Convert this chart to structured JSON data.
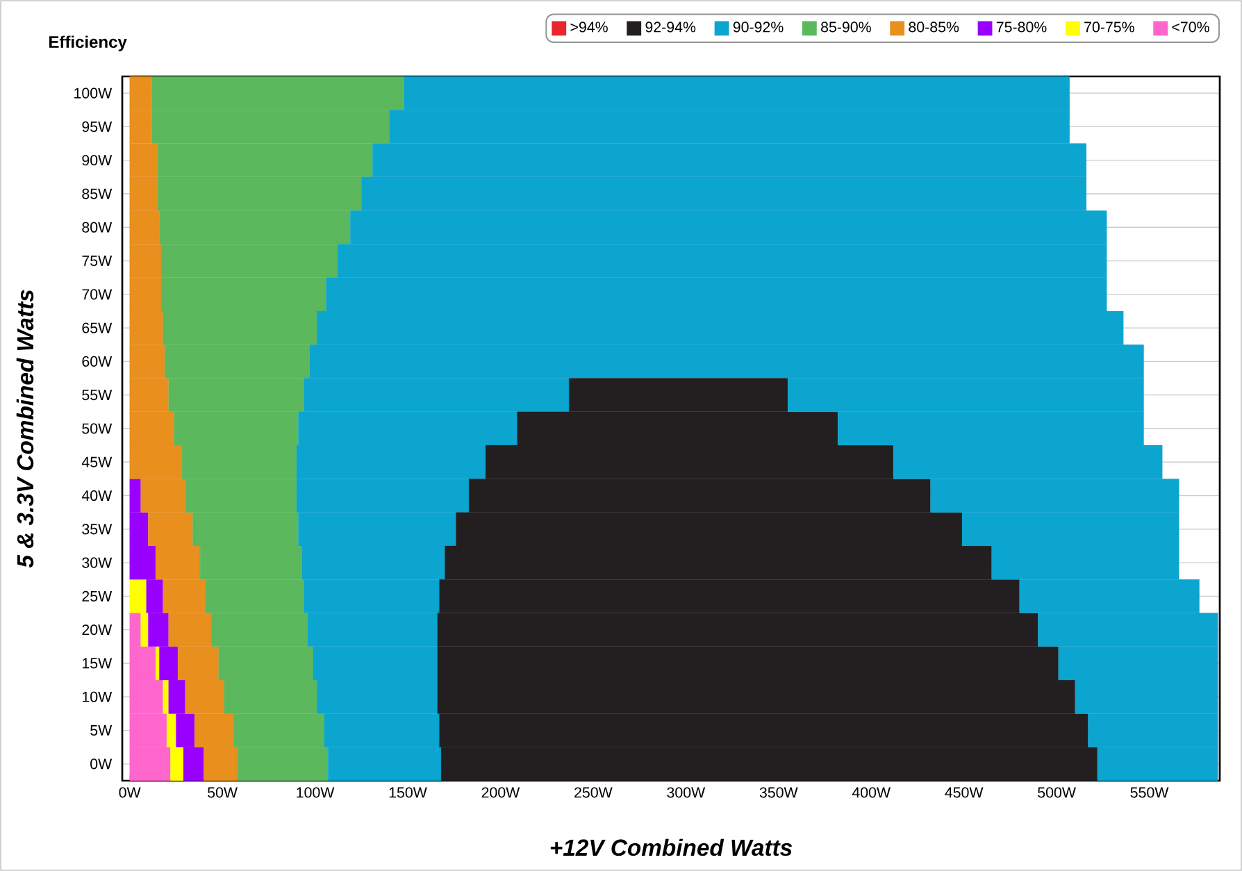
{
  "chart_data": {
    "type": "bar",
    "orientation": "horizontal",
    "stacked": true,
    "title": "Efficiency",
    "xlabel": "+12V Combined Watts",
    "ylabel": "5 & 3.3V Combined Watts",
    "categories": [
      "100W",
      "95W",
      "90W",
      "85W",
      "80W",
      "75W",
      "70W",
      "65W",
      "60W",
      "55W",
      "50W",
      "45W",
      "40W",
      "35W",
      "30W",
      "25W",
      "20W",
      "15W",
      "10W",
      "5W",
      "0W"
    ],
    "xlim": [
      -4,
      588
    ],
    "xticks": [
      {
        "value": 0,
        "label": "0W"
      },
      {
        "value": 50,
        "label": "50W"
      },
      {
        "value": 100,
        "label": "100W"
      },
      {
        "value": 150,
        "label": "150W"
      },
      {
        "value": 200,
        "label": "200W"
      },
      {
        "value": 250,
        "label": "250W"
      },
      {
        "value": 300,
        "label": "300W"
      },
      {
        "value": 350,
        "label": "350W"
      },
      {
        "value": 400,
        "label": "400W"
      },
      {
        "value": 450,
        "label": "450W"
      },
      {
        "value": 500,
        "label": "500W"
      },
      {
        "value": 550,
        "label": "550W"
      }
    ],
    "grid": "y",
    "legend": "top right",
    "series": [
      {
        "name": "<70%",
        "color": "#ff66cc",
        "values": [
          null,
          null,
          null,
          null,
          null,
          null,
          null,
          null,
          null,
          null,
          null,
          null,
          null,
          null,
          null,
          null,
          6,
          14,
          18,
          20,
          22
        ]
      },
      {
        "name": "70-75%",
        "color": "#ffff00",
        "values": [
          null,
          null,
          null,
          null,
          null,
          null,
          null,
          null,
          null,
          null,
          null,
          null,
          null,
          null,
          null,
          9,
          4,
          2,
          3,
          5,
          7
        ]
      },
      {
        "name": "75-80%",
        "color": "#9900ff",
        "values": [
          null,
          null,
          null,
          null,
          null,
          null,
          null,
          null,
          null,
          null,
          null,
          null,
          6,
          10,
          14,
          9,
          11,
          10,
          9,
          10,
          11
        ]
      },
      {
        "name": "80-85%",
        "color": "#e88f1e",
        "values": [
          12,
          12,
          15,
          15,
          16,
          17,
          17,
          18,
          19,
          21,
          24,
          28,
          24,
          24,
          24,
          23,
          23,
          22,
          21,
          21,
          18
        ]
      },
      {
        "name": "85-90%",
        "color": "#5cb85c",
        "values": [
          136,
          128,
          116,
          110,
          103,
          95,
          89,
          83,
          78,
          73,
          67,
          62,
          60,
          57,
          55,
          53,
          52,
          51,
          50,
          49,
          49
        ]
      },
      {
        "name": "90-92%",
        "color": "#0ba5d0",
        "values": [
          359,
          367,
          385,
          391,
          408,
          415,
          421,
          435,
          450,
          143,
          118,
          102,
          93,
          85,
          77,
          73,
          70,
          67,
          65,
          62,
          61
        ]
      },
      {
        "name": "92-94%",
        "color": "#231f20",
        "values": [
          null,
          null,
          null,
          null,
          null,
          null,
          null,
          null,
          null,
          118,
          173,
          220,
          249,
          273,
          295,
          313,
          324,
          335,
          344,
          350,
          354
        ]
      },
      {
        "color": "#0ba5d0",
        "values": [
          null,
          null,
          null,
          null,
          null,
          null,
          null,
          null,
          null,
          192,
          165,
          145,
          134,
          117,
          101,
          97,
          97,
          86,
          77,
          70,
          65
        ]
      },
      {
        "name": ">94%",
        "color": "#e8262b",
        "values": [
          null,
          null,
          null,
          null,
          null,
          null,
          null,
          null,
          null,
          null,
          null,
          null,
          null,
          null,
          null,
          null,
          null,
          null,
          null,
          null,
          null
        ]
      }
    ]
  }
}
